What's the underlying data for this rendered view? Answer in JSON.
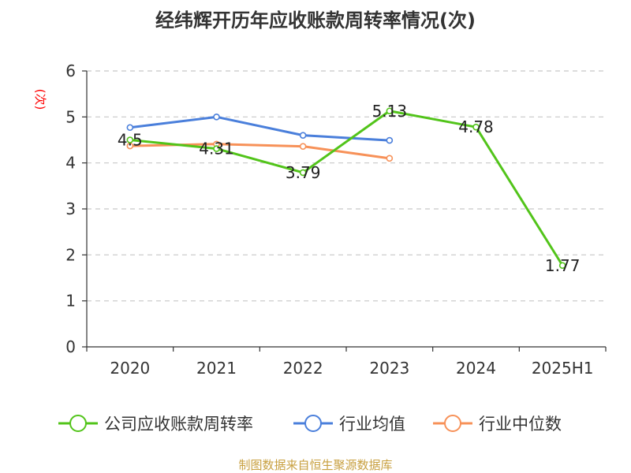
{
  "chart_data": {
    "type": "line",
    "title": "经纬辉开历年应收账款周转率情况(次)",
    "ylabel": "(次)",
    "xlabel": "",
    "categories": [
      "2020",
      "2021",
      "2022",
      "2023",
      "2024",
      "2025H1"
    ],
    "ylim": [
      0,
      6
    ],
    "yticks": [
      0,
      1,
      2,
      3,
      4,
      5,
      6
    ],
    "grid": true,
    "legend_position": "bottom",
    "series": [
      {
        "name": "公司应收账款周转率",
        "color": "#52c41a",
        "values": [
          4.5,
          4.31,
          3.79,
          5.13,
          4.78,
          1.77
        ],
        "labels": [
          "4.5",
          "4.31",
          "3.79",
          "5.13",
          "4.78",
          "1.77"
        ],
        "show_labels": true
      },
      {
        "name": "行业均值",
        "color": "#4a7fdb",
        "values": [
          4.77,
          5.0,
          4.6,
          4.49,
          null,
          null
        ],
        "show_labels": false
      },
      {
        "name": "行业中位数",
        "color": "#f79158",
        "values": [
          4.37,
          4.41,
          4.36,
          4.1,
          null,
          null
        ],
        "show_labels": false
      }
    ]
  },
  "source": "制图数据来自恒生聚源数据库"
}
